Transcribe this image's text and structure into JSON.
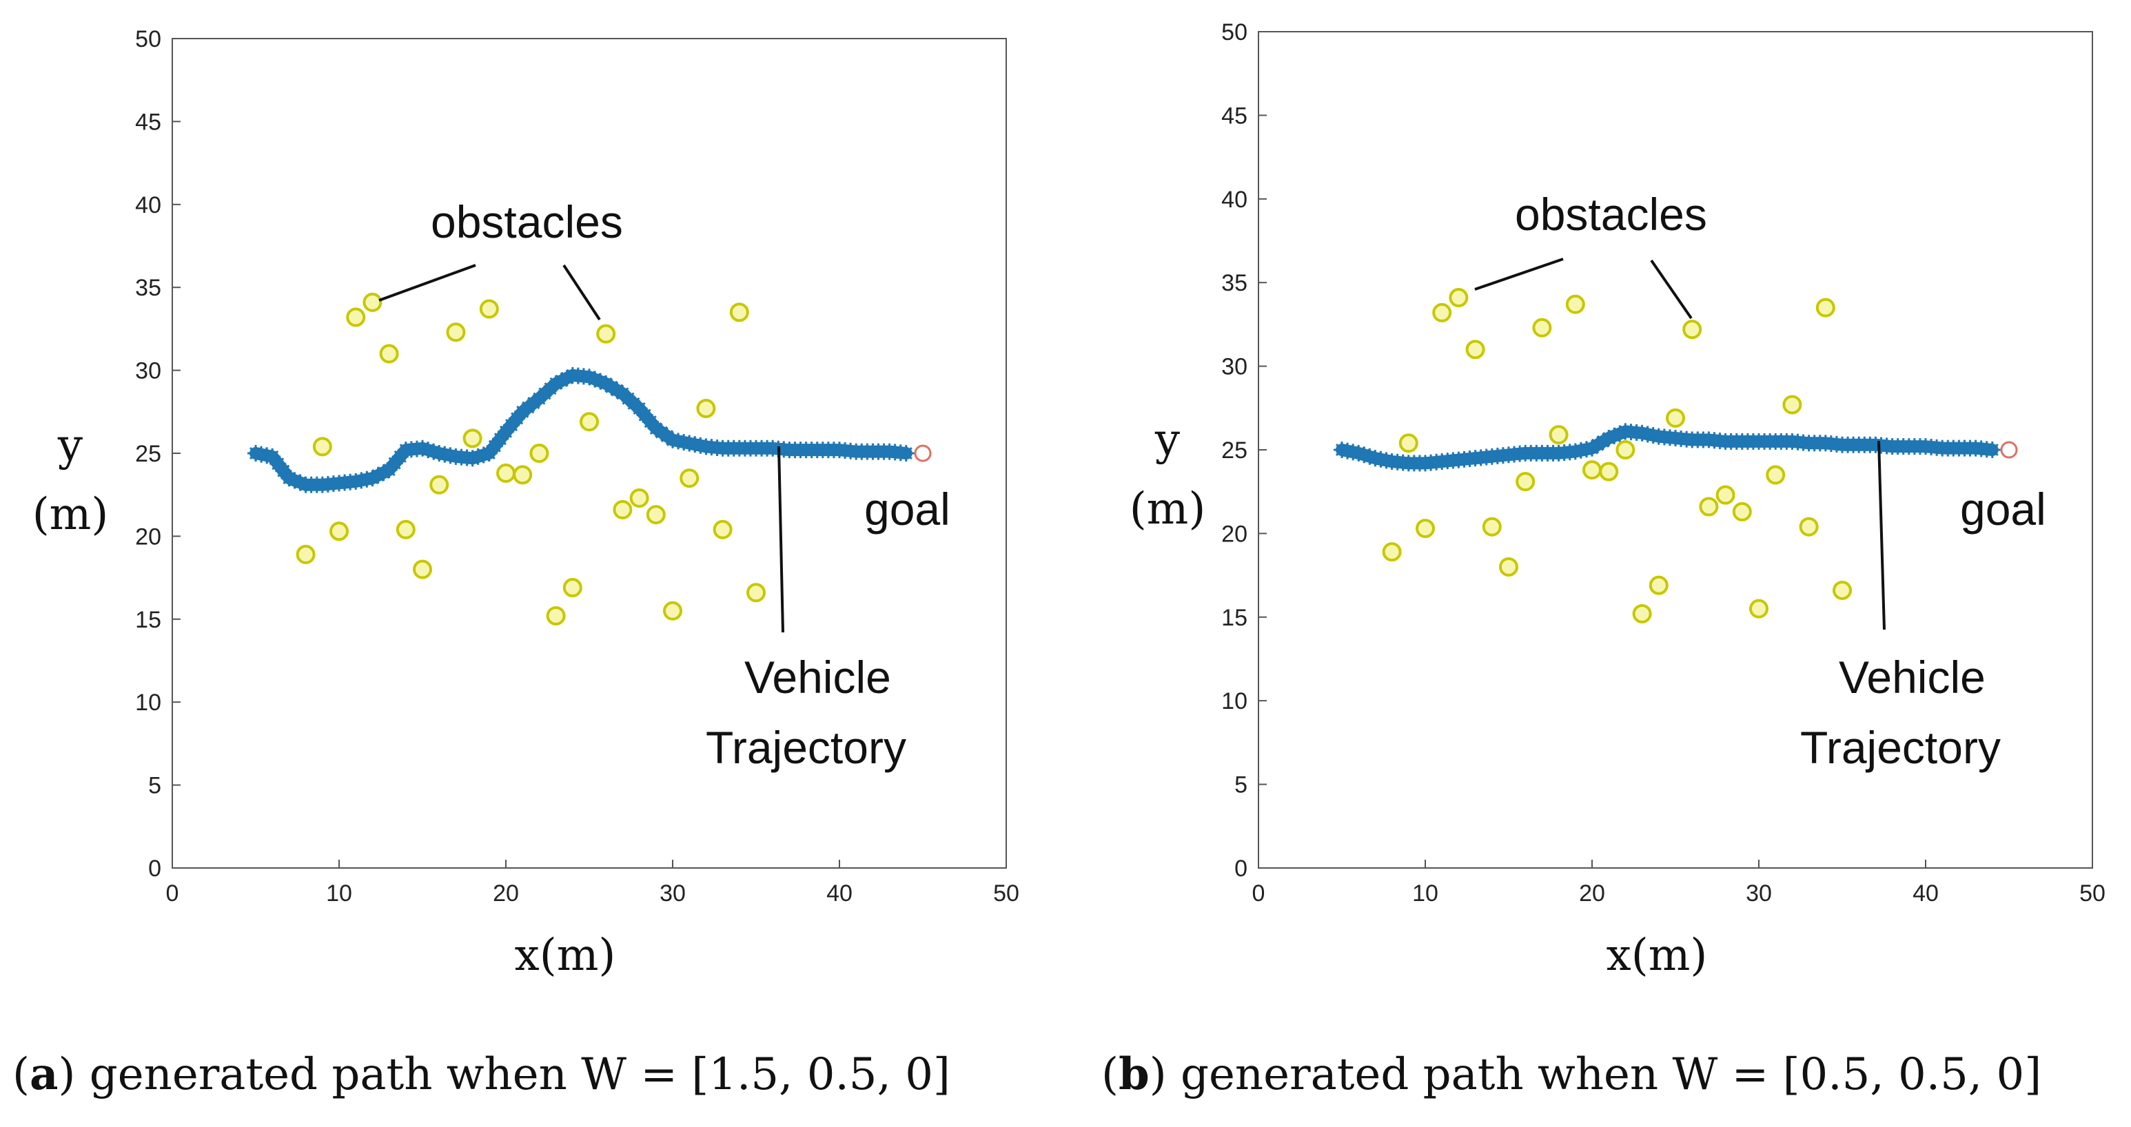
{
  "colors": {
    "trajectory": "#1f77b4",
    "obstacle_stroke": "#c8c800",
    "obstacle_fill": "#f6f6b0",
    "goal": "#e07060",
    "axis": "#555555"
  },
  "chart_data": [
    {
      "type": "scatter",
      "caption": {
        "letter": "a",
        "text": ") generated path when  W = [1.5,  0.5,  0]"
      },
      "xlabel": "x(m)",
      "ylabel": [
        "y",
        "(m)"
      ],
      "xlim": [
        0,
        50
      ],
      "ylim": [
        0,
        50
      ],
      "xticks": [
        0,
        10,
        20,
        30,
        40,
        50
      ],
      "yticks": [
        0,
        5,
        10,
        15,
        20,
        25,
        30,
        35,
        40,
        45,
        50
      ],
      "annotations": {
        "obstacles": "obstacles",
        "goal": "goal",
        "trajectory": [
          "Vehicle",
          "Trajectory"
        ]
      },
      "goal": [
        45,
        25
      ],
      "obstacles": [
        [
          12,
          34.1
        ],
        [
          11,
          33.2
        ],
        [
          19,
          33.7
        ],
        [
          17,
          32.3
        ],
        [
          26,
          32.2
        ],
        [
          34,
          33.5
        ],
        [
          13,
          31
        ],
        [
          32,
          27.7
        ],
        [
          18,
          25.9
        ],
        [
          25,
          26.9
        ],
        [
          9,
          25.4
        ],
        [
          22,
          25
        ],
        [
          20,
          23.8
        ],
        [
          21,
          23.7
        ],
        [
          16,
          23.1
        ],
        [
          31,
          23.5
        ],
        [
          28,
          22.3
        ],
        [
          27,
          21.6
        ],
        [
          29,
          21.3
        ],
        [
          10,
          20.3
        ],
        [
          14,
          20.4
        ],
        [
          33,
          20.4
        ],
        [
          8,
          18.9
        ],
        [
          15,
          18
        ],
        [
          24,
          16.9
        ],
        [
          35,
          16.6
        ],
        [
          23,
          15.2
        ],
        [
          30,
          15.5
        ]
      ],
      "trajectory": [
        [
          5,
          25
        ],
        [
          6,
          24.8
        ],
        [
          7,
          23.5
        ],
        [
          8,
          23.1
        ],
        [
          9,
          23.1
        ],
        [
          10,
          23.2
        ],
        [
          11,
          23.3
        ],
        [
          12,
          23.5
        ],
        [
          13,
          24
        ],
        [
          14,
          25.2
        ],
        [
          15,
          25.3
        ],
        [
          16,
          25
        ],
        [
          17,
          24.8
        ],
        [
          18,
          24.7
        ],
        [
          19,
          25
        ],
        [
          20,
          26.3
        ],
        [
          21,
          27.5
        ],
        [
          22,
          28.3
        ],
        [
          23,
          29.2
        ],
        [
          24,
          29.7
        ],
        [
          25,
          29.6
        ],
        [
          26,
          29.2
        ],
        [
          27,
          28.6
        ],
        [
          28,
          27.7
        ],
        [
          29,
          26.5
        ],
        [
          30,
          25.8
        ],
        [
          31,
          25.6
        ],
        [
          32,
          25.4
        ],
        [
          33,
          25.3
        ],
        [
          34,
          25.3
        ],
        [
          35,
          25.3
        ],
        [
          36,
          25.3
        ],
        [
          37,
          25.2
        ],
        [
          38,
          25.2
        ],
        [
          39,
          25.2
        ],
        [
          40,
          25.2
        ],
        [
          41,
          25.1
        ],
        [
          42,
          25.1
        ],
        [
          43,
          25.1
        ],
        [
          44,
          25
        ]
      ]
    },
    {
      "type": "scatter",
      "caption": {
        "letter": "b",
        "text": ") generated path when  W = [0.5,  0.5,  0]"
      },
      "xlabel": "x(m)",
      "ylabel": [
        "y",
        "(m)"
      ],
      "xlim": [
        0,
        50
      ],
      "ylim": [
        0,
        50
      ],
      "xticks": [
        0,
        10,
        20,
        30,
        40,
        50
      ],
      "yticks": [
        0,
        5,
        10,
        15,
        20,
        25,
        30,
        35,
        40,
        45,
        50
      ],
      "annotations": {
        "obstacles": "obstacles",
        "goal": "goal",
        "trajectory": [
          "Vehicle",
          "Trajectory"
        ]
      },
      "goal": [
        45,
        25
      ],
      "obstacles": [
        [
          12,
          34.1
        ],
        [
          11,
          33.2
        ],
        [
          19,
          33.7
        ],
        [
          17,
          32.3
        ],
        [
          26,
          32.2
        ],
        [
          34,
          33.5
        ],
        [
          13,
          31
        ],
        [
          32,
          27.7
        ],
        [
          18,
          25.9
        ],
        [
          25,
          26.9
        ],
        [
          9,
          25.4
        ],
        [
          22,
          25
        ],
        [
          20,
          23.8
        ],
        [
          21,
          23.7
        ],
        [
          16,
          23.1
        ],
        [
          31,
          23.5
        ],
        [
          28,
          22.3
        ],
        [
          27,
          21.6
        ],
        [
          29,
          21.3
        ],
        [
          10,
          20.3
        ],
        [
          14,
          20.4
        ],
        [
          33,
          20.4
        ],
        [
          8,
          18.9
        ],
        [
          15,
          18
        ],
        [
          24,
          16.9
        ],
        [
          35,
          16.6
        ],
        [
          23,
          15.2
        ],
        [
          30,
          15.5
        ]
      ],
      "trajectory": [
        [
          5,
          25
        ],
        [
          6,
          24.8
        ],
        [
          7,
          24.5
        ],
        [
          8,
          24.3
        ],
        [
          9,
          24.2
        ],
        [
          10,
          24.2
        ],
        [
          11,
          24.3
        ],
        [
          12,
          24.4
        ],
        [
          13,
          24.5
        ],
        [
          14,
          24.6
        ],
        [
          15,
          24.7
        ],
        [
          16,
          24.8
        ],
        [
          17,
          24.8
        ],
        [
          18,
          24.8
        ],
        [
          19,
          24.9
        ],
        [
          20,
          25.1
        ],
        [
          21,
          25.7
        ],
        [
          22,
          26.1
        ],
        [
          23,
          26
        ],
        [
          24,
          25.8
        ],
        [
          25,
          25.7
        ],
        [
          26,
          25.6
        ],
        [
          27,
          25.6
        ],
        [
          28,
          25.5
        ],
        [
          29,
          25.5
        ],
        [
          30,
          25.5
        ],
        [
          31,
          25.5
        ],
        [
          32,
          25.5
        ],
        [
          33,
          25.4
        ],
        [
          34,
          25.4
        ],
        [
          35,
          25.3
        ],
        [
          36,
          25.3
        ],
        [
          37,
          25.3
        ],
        [
          38,
          25.2
        ],
        [
          39,
          25.2
        ],
        [
          40,
          25.2
        ],
        [
          41,
          25.1
        ],
        [
          42,
          25.1
        ],
        [
          43,
          25.1
        ],
        [
          44,
          25
        ]
      ]
    }
  ]
}
